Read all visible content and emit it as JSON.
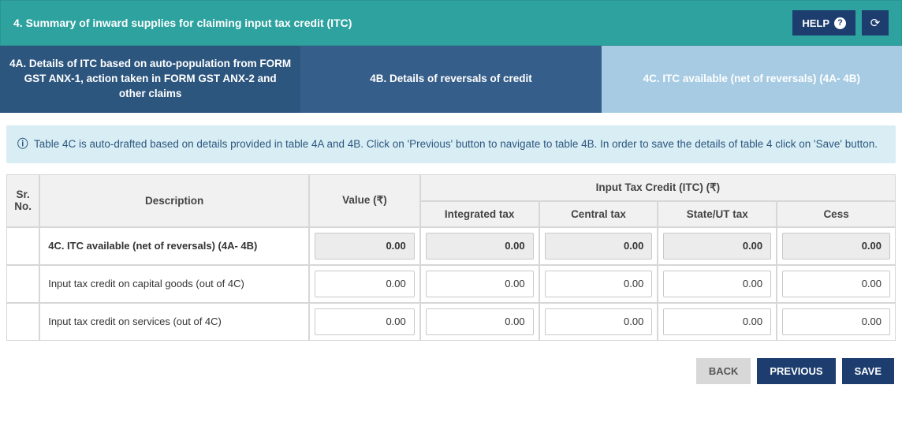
{
  "colors": {
    "header_bg": "#2da29f",
    "primary_button": "#1c3d6e",
    "tab_a_bg": "#2d567f",
    "tab_b_bg": "#365e8a",
    "tab_c_bg": "#a6cbe3",
    "info_bg": "#d8eef4",
    "info_text": "#2d567f",
    "th_bg": "#f1f1f1",
    "border": "#d7d7d7",
    "readonly_bg": "#ececec",
    "back_btn_bg": "#d8d8d8"
  },
  "header": {
    "title": "4. Summary of inward supplies for claiming input tax credit (ITC)",
    "help_label": "HELP",
    "help_icon": "help-icon",
    "refresh_icon": "refresh-icon"
  },
  "tabs": {
    "a": "4A. Details of ITC based on auto-population from FORM GST ANX-1, action taken in FORM GST ANX-2 and other claims",
    "b": "4B. Details of reversals of credit",
    "c": "4C. ITC available (net of reversals) (4A- 4B)",
    "active": "c"
  },
  "info": {
    "text": "Table 4C is auto-drafted based on details provided in table 4A and 4B. Click on 'Previous' button to navigate to table 4B. In order to save the details of table 4 click on 'Save' button."
  },
  "table": {
    "columns": {
      "srno": "Sr. No.",
      "description": "Description",
      "value": "Value (₹)",
      "itc_group": "Input Tax Credit (ITC) (₹)",
      "integrated": "Integrated tax",
      "central": "Central tax",
      "state": "State/UT tax",
      "cess": "Cess"
    },
    "rows": [
      {
        "srno": "",
        "desc": "4C. ITC available (net of reversals) (4A- 4B)",
        "bold": true,
        "readonly": true,
        "value": "0.00",
        "integrated": "0.00",
        "central": "0.00",
        "state": "0.00",
        "cess": "0.00"
      },
      {
        "srno": "",
        "desc": "Input tax credit on capital goods (out of 4C)",
        "bold": false,
        "readonly": false,
        "value": "0.00",
        "integrated": "0.00",
        "central": "0.00",
        "state": "0.00",
        "cess": "0.00"
      },
      {
        "srno": "",
        "desc": "Input tax credit on services (out of 4C)",
        "bold": false,
        "readonly": false,
        "value": "0.00",
        "integrated": "0.00",
        "central": "0.00",
        "state": "0.00",
        "cess": "0.00"
      }
    ]
  },
  "footer": {
    "back": "BACK",
    "previous": "PREVIOUS",
    "save": "SAVE"
  }
}
